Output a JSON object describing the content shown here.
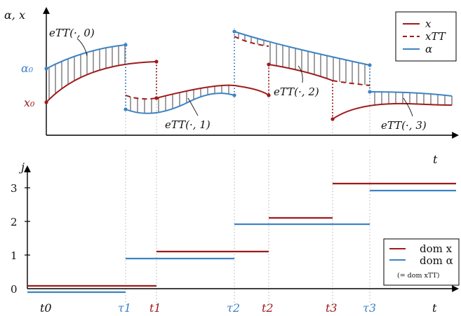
{
  "colors": {
    "x": "#a01a1a",
    "alpha": "#3d83c4",
    "axis": "#000000",
    "guide": "#b0b0b0",
    "hatch": "#111111"
  },
  "top": {
    "y_axis_label": "α, x",
    "t_label": "t",
    "alpha0_label": "α₀",
    "x0_label": "x₀",
    "error_labels": [
      "eTT(·, 0)",
      "eTT(·, 1)",
      "eTT(·, 2)",
      "eTT(·, 3)"
    ],
    "legend": {
      "x": "x",
      "xTT": "xTT",
      "alpha": "α"
    }
  },
  "bottom": {
    "y_axis_label": "j",
    "t_label": "t",
    "y_ticks": [
      "0",
      "1",
      "2",
      "3"
    ],
    "legend": {
      "dom_x": "dom x",
      "dom_alpha": "dom α",
      "note": "(= dom xTT)"
    }
  },
  "time_labels": [
    {
      "text": "t0",
      "color": "black"
    },
    {
      "text": "τ1",
      "color": "blue"
    },
    {
      "text": "t1",
      "color": "red"
    },
    {
      "text": "τ2",
      "color": "blue"
    },
    {
      "text": "t2",
      "color": "red"
    },
    {
      "text": "t3",
      "color": "red"
    },
    {
      "text": "τ3",
      "color": "blue"
    },
    {
      "text": "t",
      "color": "black"
    }
  ]
}
